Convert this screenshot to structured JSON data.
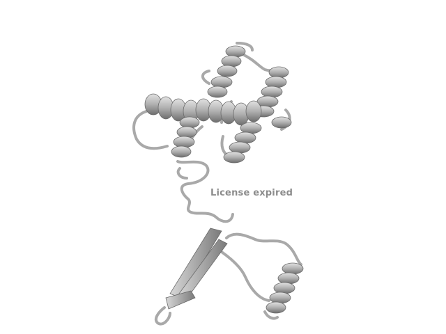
{
  "viewport": {
    "background": "#ffffff",
    "cartoon_color": "#b4b4b4",
    "watermark_text": "License expired"
  }
}
